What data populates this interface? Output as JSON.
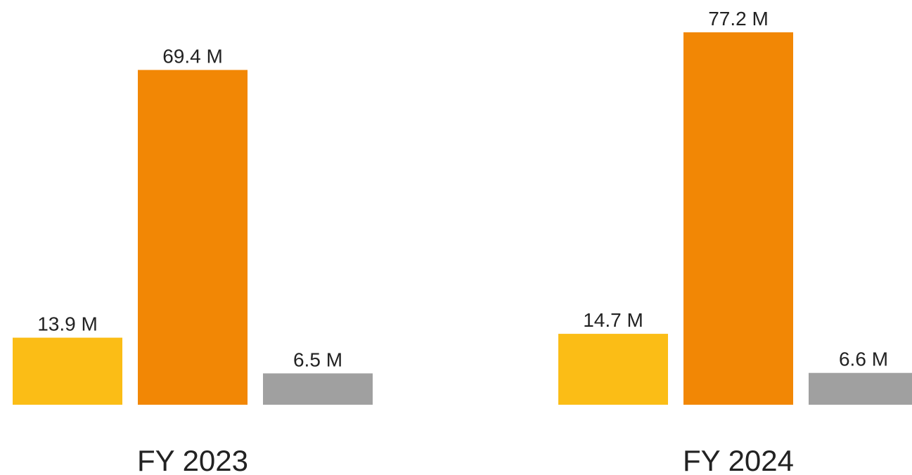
{
  "chart_data": {
    "type": "bar",
    "categories": [
      "FY 2023",
      "FY 2024"
    ],
    "series": [
      {
        "color": "#fbbd16",
        "values": [
          13.9,
          14.7
        ],
        "value_labels": [
          "13.9 M",
          "14.7 M"
        ]
      },
      {
        "color": "#f28705",
        "values": [
          69.4,
          77.2
        ],
        "value_labels": [
          "69.4 M",
          "77.2 M"
        ]
      },
      {
        "color": "#a0a0a0",
        "values": [
          6.5,
          6.6
        ],
        "value_labels": [
          "6.5 M",
          "6.6 M"
        ]
      }
    ]
  }
}
